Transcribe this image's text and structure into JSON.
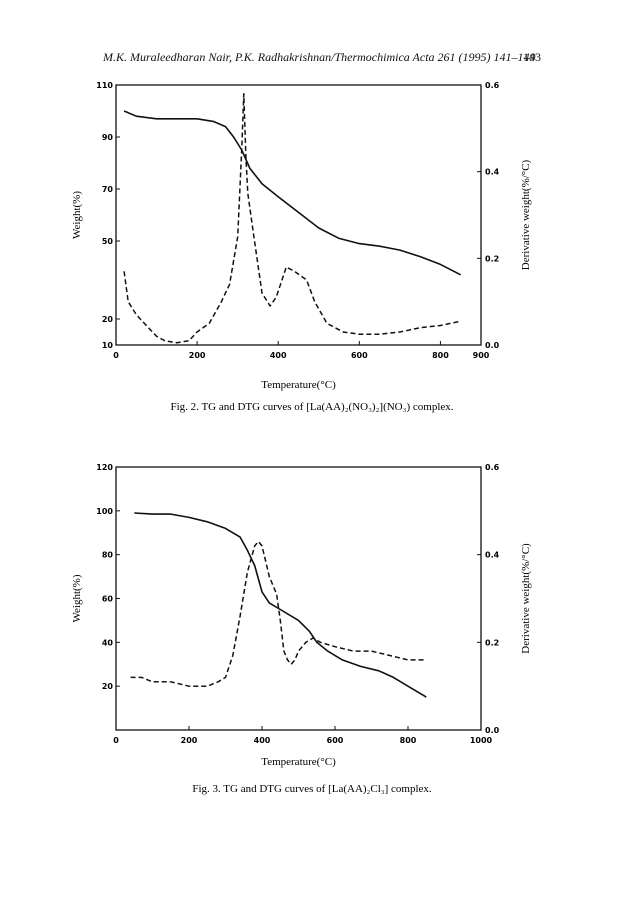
{
  "header": {
    "text": "M.K. Muraleedharan Nair, P.K. Radhakrishnan/Thermochimica Acta 261 (1995) 141–149",
    "page": "143"
  },
  "chart_data": [
    {
      "type": "line",
      "caption": "Fig. 2. TG and DTG curves of [La(AA)₂(NO₃)₂](NO₃) complex.",
      "xlabel": "Temperature(°C)",
      "ylabel": "Weight(%)",
      "y2label": "Derivative weight(%/°C)",
      "xlim": [
        0,
        900
      ],
      "ylim": [
        10,
        110
      ],
      "y2lim": [
        0,
        0.6
      ],
      "xticks": [
        "0",
        "200",
        "400",
        "600",
        "800",
        "900"
      ],
      "yticks": [
        "110",
        "90",
        "70",
        "50",
        "20",
        "10"
      ],
      "y2ticks": [
        "0.6",
        "0.4",
        "0.2",
        "0.0"
      ],
      "series": [
        {
          "axis": "y",
          "style": "solid",
          "x": [
            20,
            50,
            100,
            150,
            200,
            240,
            270,
            290,
            310,
            330,
            360,
            400,
            450,
            500,
            550,
            600,
            650,
            700,
            750,
            800,
            850
          ],
          "y": [
            100,
            98,
            97,
            97,
            97,
            96,
            94,
            90,
            85,
            78,
            72,
            67,
            61,
            55,
            51,
            49,
            48,
            46.5,
            44,
            41,
            37
          ]
        },
        {
          "axis": "y2",
          "style": "dashed",
          "x": [
            20,
            30,
            50,
            80,
            100,
            120,
            150,
            180,
            200,
            230,
            260,
            280,
            300,
            310,
            315,
            320,
            325,
            340,
            360,
            380,
            395,
            420,
            440,
            470,
            490,
            520,
            560,
            600,
            650,
            700,
            750,
            800,
            850
          ],
          "y": [
            0.17,
            0.1,
            0.07,
            0.04,
            0.02,
            0.01,
            0.005,
            0.01,
            0.03,
            0.05,
            0.1,
            0.14,
            0.25,
            0.45,
            0.58,
            0.44,
            0.35,
            0.25,
            0.12,
            0.09,
            0.11,
            0.18,
            0.17,
            0.15,
            0.1,
            0.05,
            0.03,
            0.025,
            0.025,
            0.03,
            0.04,
            0.045,
            0.055
          ]
        }
      ]
    },
    {
      "type": "line",
      "caption": "Fig. 3. TG and DTG curves of [La(AA)₂Cl₃] complex.",
      "xlabel": "Temperature(°C)",
      "ylabel": "Weight(%)",
      "y2label": "Derivative weight(%/°C)",
      "xlim": [
        0,
        1000
      ],
      "ylim": [
        0,
        120
      ],
      "y2lim": [
        0,
        0.6
      ],
      "xticks": [
        "0",
        "200",
        "400",
        "600",
        "800",
        "1000"
      ],
      "yticks": [
        "120",
        "100",
        "80",
        "60",
        "40",
        "20"
      ],
      "y2ticks": [
        "0.6",
        "0.4",
        "0.2",
        "0.0"
      ],
      "series": [
        {
          "axis": "y",
          "style": "solid",
          "x": [
            50,
            100,
            150,
            200,
            250,
            300,
            340,
            360,
            380,
            400,
            420,
            450,
            500,
            530,
            550,
            580,
            620,
            670,
            720,
            760,
            800,
            830,
            850
          ],
          "y": [
            99,
            98.5,
            98.5,
            97,
            95,
            92,
            88,
            82,
            75,
            63,
            58,
            55,
            50,
            45,
            40,
            36,
            32,
            29,
            27,
            24,
            20,
            17,
            15
          ]
        },
        {
          "axis": "y2",
          "style": "dashed",
          "x": [
            40,
            70,
            100,
            150,
            200,
            250,
            280,
            300,
            320,
            340,
            360,
            380,
            390,
            400,
            420,
            440,
            450,
            460,
            470,
            480,
            490,
            500,
            520,
            540,
            560,
            600,
            650,
            700,
            750,
            800,
            850
          ],
          "y": [
            0.12,
            0.12,
            0.11,
            0.11,
            0.1,
            0.1,
            0.11,
            0.12,
            0.17,
            0.26,
            0.36,
            0.42,
            0.43,
            0.42,
            0.35,
            0.31,
            0.25,
            0.18,
            0.16,
            0.15,
            0.16,
            0.18,
            0.2,
            0.21,
            0.2,
            0.19,
            0.18,
            0.18,
            0.17,
            0.16,
            0.16
          ]
        }
      ]
    }
  ]
}
